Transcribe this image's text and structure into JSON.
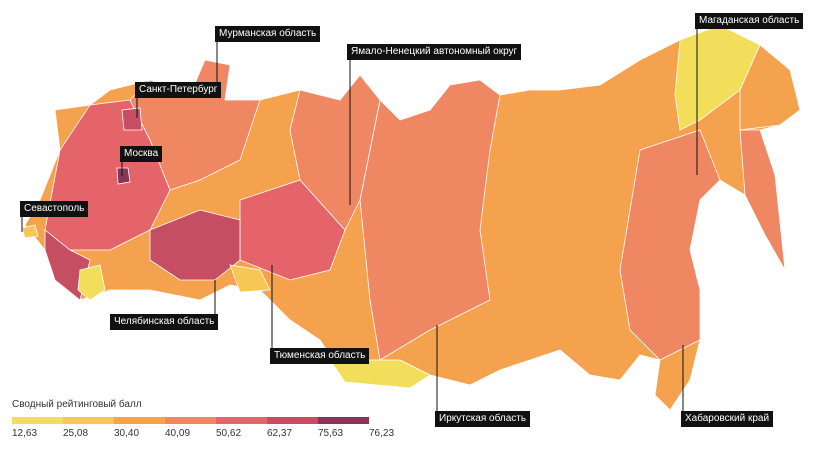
{
  "legend": {
    "title": "Сводный рейтинговый балл",
    "colors": [
      "#f2de5a",
      "#f7c655",
      "#f5a24f",
      "#f08763",
      "#e5646a",
      "#c54e63",
      "#8a3459"
    ],
    "ticks": [
      "12,63",
      "25,08",
      "30,40",
      "40,09",
      "50,62",
      "62,37",
      "75,63",
      "76,23"
    ]
  },
  "labels": {
    "murmansk": "Мурманская область",
    "spb": "Санкт-Петербург",
    "moscow": "Москва",
    "sevastopol": "Севастополь",
    "chelyabinsk": "Челябинская область",
    "tyumen": "Тюменская область",
    "yamal": "Ямало-Ненецкий автономный округ",
    "irkutsk": "Иркутская область",
    "magadan": "Магаданская область",
    "khabarovsk": "Хабаровский край"
  }
}
